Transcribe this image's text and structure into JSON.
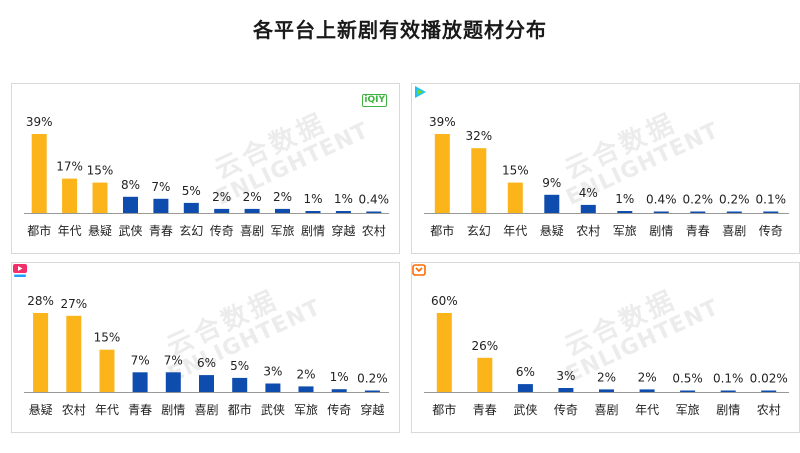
{
  "title": "各平台上新剧有效播放题材分布",
  "watermark": {
    "cn": "云合数据",
    "en": "ENLIGHTENT"
  },
  "colors": {
    "highlight": "#FBB41A",
    "normal": "#0E4CAE",
    "axis": "#999999"
  },
  "chart_data": [
    {
      "type": "bar",
      "platform_logo": "iqiyi-logo",
      "logo_text": "iQIY",
      "categories": [
        "都市",
        "年代",
        "悬疑",
        "武侠",
        "青春",
        "玄幻",
        "传奇",
        "喜剧",
        "军旅",
        "剧情",
        "穿越",
        "农村"
      ],
      "values": [
        39,
        17,
        15,
        8,
        7,
        5,
        2,
        2,
        2,
        1,
        1,
        0.4
      ],
      "labels": [
        "39%",
        "17%",
        "15%",
        "8%",
        "7%",
        "5%",
        "2%",
        "2%",
        "2%",
        "1%",
        "1%",
        "0.4%"
      ],
      "highlight_count": 3
    },
    {
      "type": "bar",
      "platform_logo": "tencent-video-logo",
      "categories": [
        "都市",
        "玄幻",
        "年代",
        "悬疑",
        "农村",
        "军旅",
        "剧情",
        "青春",
        "喜剧",
        "传奇"
      ],
      "values": [
        39,
        32,
        15,
        9,
        4,
        1,
        0.4,
        0.2,
        0.2,
        0.1
      ],
      "labels": [
        "39%",
        "32%",
        "15%",
        "9%",
        "4%",
        "1%",
        "0.4%",
        "0.2%",
        "0.2%",
        "0.1%"
      ],
      "highlight_count": 3
    },
    {
      "type": "bar",
      "platform_logo": "youku-logo",
      "categories": [
        "悬疑",
        "农村",
        "年代",
        "青春",
        "剧情",
        "喜剧",
        "都市",
        "武侠",
        "军旅",
        "传奇",
        "穿越"
      ],
      "values": [
        28,
        27,
        15,
        7,
        7,
        6,
        5,
        3,
        2,
        1,
        0.2
      ],
      "labels": [
        "28%",
        "27%",
        "15%",
        "7%",
        "7%",
        "6%",
        "5%",
        "3%",
        "2%",
        "1%",
        "0.2%"
      ],
      "highlight_count": 3
    },
    {
      "type": "bar",
      "platform_logo": "mango-tv-logo",
      "categories": [
        "都市",
        "青春",
        "武侠",
        "传奇",
        "喜剧",
        "年代",
        "军旅",
        "剧情",
        "农村"
      ],
      "values": [
        60,
        26,
        6,
        3,
        2,
        2,
        0.5,
        0.1,
        0.02
      ],
      "labels": [
        "60%",
        "26%",
        "6%",
        "3%",
        "2%",
        "2%",
        "0.5%",
        "0.1%",
        "0.02%"
      ],
      "highlight_count": 2
    }
  ]
}
